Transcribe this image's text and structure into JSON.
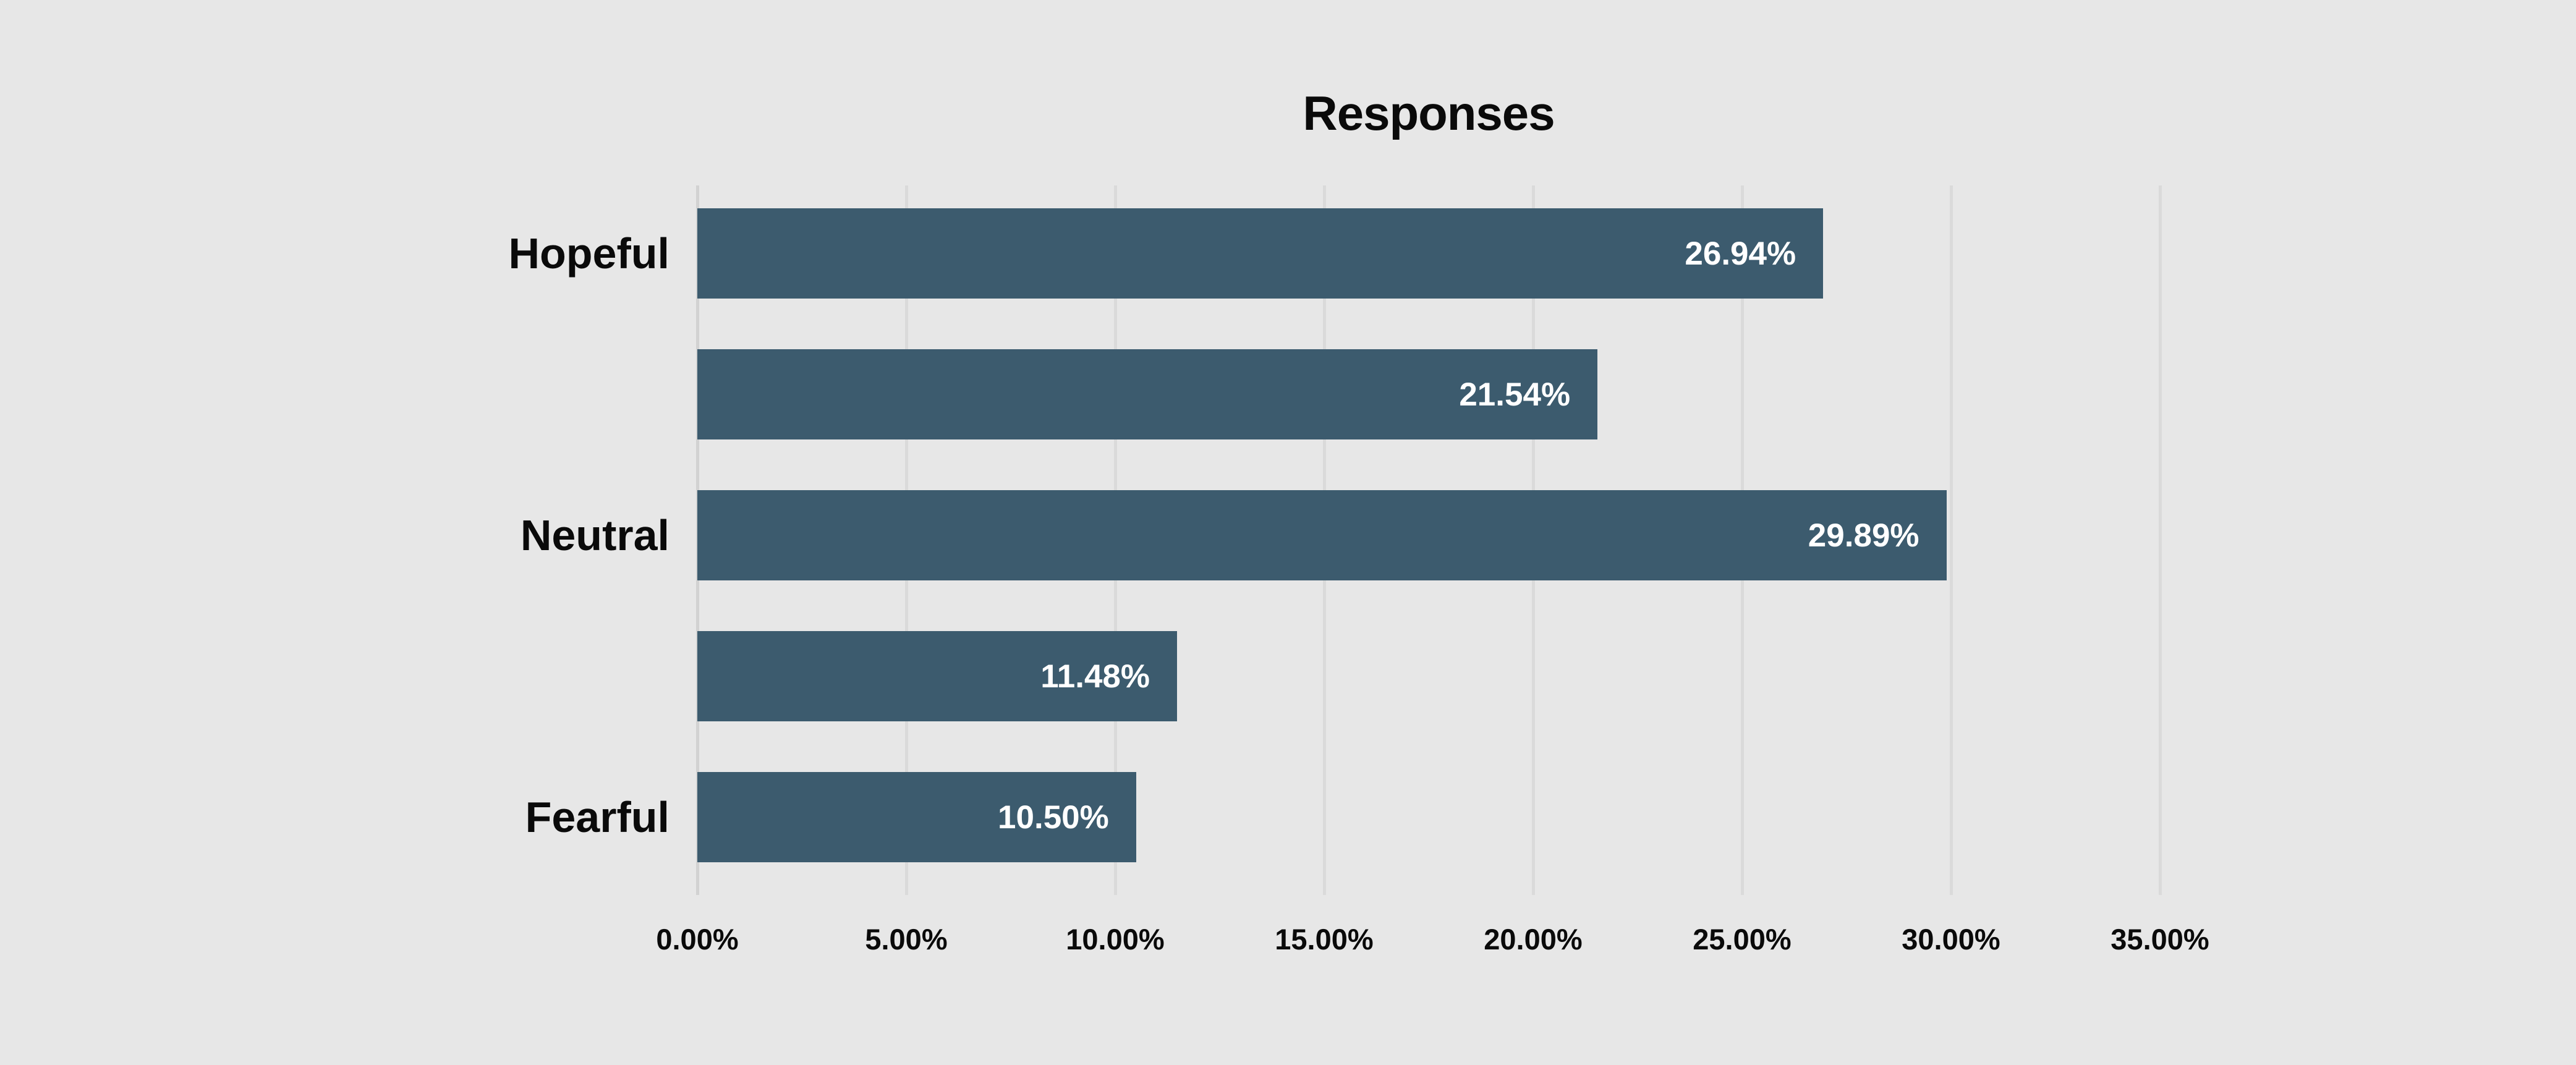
{
  "title": "Responses",
  "colors": {
    "background": "#e7e7e7",
    "bar": "#3c5b6e",
    "gridline": "#dadada",
    "label_text": "#0a0a0a",
    "value_text": "#ffffff"
  },
  "chart_data": {
    "type": "bar",
    "orientation": "horizontal",
    "title": "Responses",
    "categories": [
      "Hopeful",
      "",
      "Neutral",
      "",
      "Fearful"
    ],
    "values": [
      26.94,
      21.54,
      29.89,
      11.48,
      10.5
    ],
    "value_labels": [
      "26.94%",
      "21.54%",
      "29.89%",
      "11.48%",
      "10.50%"
    ],
    "xlabel": "",
    "ylabel": "",
    "xlim": [
      0,
      35
    ],
    "tick_step": 5,
    "tick_labels": [
      "0.00%",
      "5.00%",
      "10.00%",
      "15.00%",
      "20.00%",
      "25.00%",
      "30.00%",
      "35.00%"
    ],
    "grid": "vertical",
    "legend_position": "none"
  }
}
